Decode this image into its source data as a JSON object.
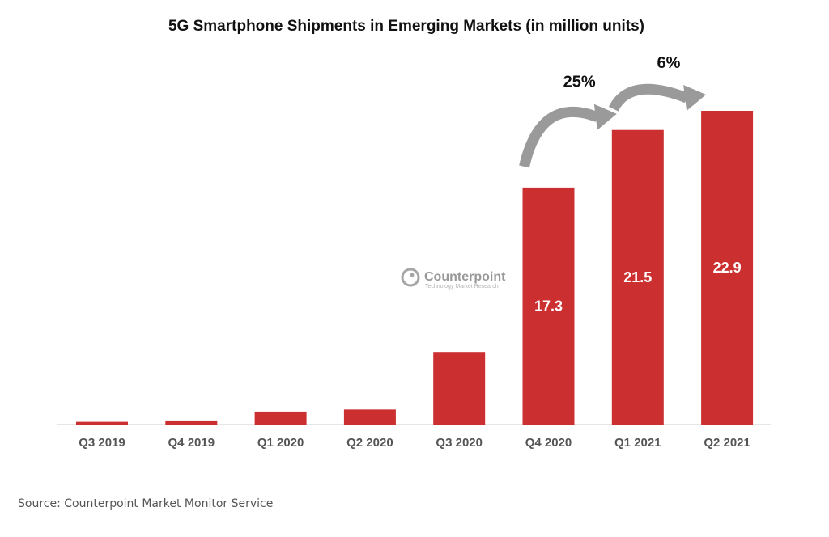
{
  "chart_data": {
    "type": "bar",
    "title": "5G Smartphone Shipments in Emerging Markets (in million units)",
    "xlabel": "",
    "ylabel": "",
    "categories": [
      "Q3 2019",
      "Q4 2019",
      "Q1 2020",
      "Q2 2020",
      "Q3 2020",
      "Q4 2020",
      "Q1 2021",
      "Q2 2021"
    ],
    "values": [
      0.2,
      0.3,
      0.95,
      1.1,
      5.3,
      17.3,
      21.5,
      22.9
    ],
    "data_labels": [
      "",
      "",
      "",
      "",
      "",
      "17.3",
      "21.5",
      "22.9"
    ],
    "ylim": [
      0,
      23
    ],
    "grid": false,
    "bar_color": "#cc2f2f",
    "annotations": [
      {
        "text": "25%",
        "from": "Q4 2020",
        "to": "Q1 2021",
        "icon": "curved-arrow-icon"
      },
      {
        "text": "6%",
        "from": "Q1 2021",
        "to": "Q2 2021",
        "icon": "curved-arrow-icon"
      }
    ]
  },
  "watermark": {
    "brand": "Counterpoint",
    "tagline": "Technology Market Research"
  },
  "source": "Source: Counterpoint Market Monitor Service"
}
